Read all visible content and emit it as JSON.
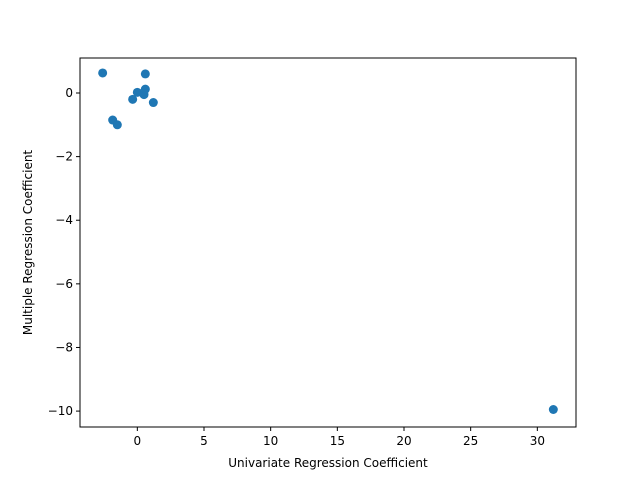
{
  "chart_data": {
    "type": "scatter",
    "xlabel": "Univariate Regression Coefficient",
    "ylabel": "Multiple Regression Coefficient",
    "xlim": [
      -4.3,
      32.9
    ],
    "ylim": [
      -10.5,
      1.1
    ],
    "x_ticks": [
      0,
      5,
      10,
      15,
      20,
      25,
      30
    ],
    "y_ticks": [
      0,
      -2,
      -4,
      -6,
      -8,
      -10
    ],
    "x_tick_labels": [
      "0",
      "5",
      "10",
      "15",
      "20",
      "25",
      "30"
    ],
    "y_tick_labels": [
      "0",
      "−2",
      "−4",
      "−6",
      "−8",
      "−10"
    ],
    "grid": false,
    "marker_color": "#1f77b4",
    "points": [
      {
        "x": -2.6,
        "y": 0.63
      },
      {
        "x": -1.85,
        "y": -0.85
      },
      {
        "x": -1.5,
        "y": -1.0
      },
      {
        "x": -0.35,
        "y": -0.2
      },
      {
        "x": 0.0,
        "y": 0.02
      },
      {
        "x": 0.5,
        "y": -0.05
      },
      {
        "x": 0.6,
        "y": 0.12
      },
      {
        "x": 0.6,
        "y": 0.6
      },
      {
        "x": 1.2,
        "y": -0.3
      },
      {
        "x": 31.2,
        "y": -9.95
      }
    ]
  }
}
